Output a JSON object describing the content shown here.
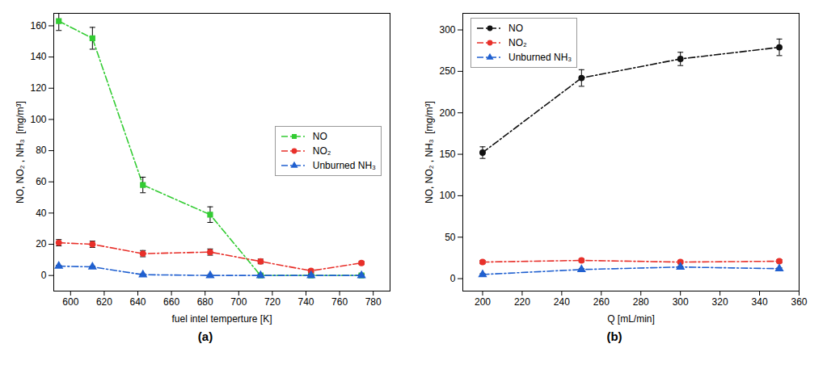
{
  "chart_data": [
    {
      "type": "line",
      "title": "(a)",
      "x_label": "fuel intel temperture [K]",
      "y_label": "NO, NO₂ , NH₃  [mg/m³]",
      "x": [
        593,
        613,
        643,
        683,
        713,
        743,
        773
      ],
      "series": [
        {
          "name": "NO",
          "color": "#33cc33",
          "marker": "square",
          "line_style": "dashdot",
          "values": [
            163,
            152,
            58,
            39,
            0,
            0,
            0
          ],
          "errors": [
            6,
            7,
            5,
            5,
            1,
            1,
            1
          ]
        },
        {
          "name": "NO₂",
          "color": "#e8302a",
          "marker": "circle",
          "line_style": "dashdot",
          "values": [
            21,
            20,
            14,
            15,
            9,
            3,
            8
          ],
          "errors": [
            2,
            2,
            2,
            2,
            1.5,
            1,
            1
          ]
        },
        {
          "name": "Unburned NH₃",
          "color": "#2060d0",
          "marker": "triangle",
          "line_style": "dashdot",
          "values": [
            6,
            5.5,
            0.5,
            0,
            0,
            0,
            0
          ],
          "errors": [
            0.5,
            0.5,
            0.5,
            0.5,
            0.5,
            0.5,
            0.5
          ]
        }
      ],
      "xlim": [
        590,
        790
      ],
      "xticks": [
        600,
        620,
        640,
        660,
        680,
        700,
        720,
        740,
        760,
        780
      ],
      "ylim": [
        -10,
        168
      ],
      "yticks": [
        0,
        20,
        40,
        60,
        80,
        100,
        120,
        140,
        160
      ],
      "legend": "center right",
      "grid": false
    },
    {
      "type": "line",
      "title": "(b)",
      "x_label": "Q [mL/min]",
      "y_label": "NO, NO₂ , NH₃  [mg/m³]",
      "x": [
        200,
        250,
        300,
        350
      ],
      "series": [
        {
          "name": "NO",
          "color": "#111111",
          "marker": "circle",
          "line_style": "dashdot",
          "values": [
            152,
            242,
            265,
            279
          ],
          "errors": [
            7,
            10,
            8,
            10
          ]
        },
        {
          "name": "NO₂",
          "color": "#e8302a",
          "marker": "circle",
          "line_style": "dashdot",
          "values": [
            20,
            22,
            20,
            21
          ],
          "errors": [
            2,
            2,
            2,
            2
          ]
        },
        {
          "name": "Unburned NH₃",
          "color": "#2060d0",
          "marker": "triangle",
          "line_style": "dashdot",
          "values": [
            5,
            11,
            14,
            12
          ],
          "errors": [
            1,
            1,
            1,
            1
          ]
        }
      ],
      "xlim": [
        190,
        360
      ],
      "xticks": [
        200,
        220,
        240,
        260,
        280,
        300,
        320,
        340,
        360
      ],
      "ylim": [
        -15,
        320
      ],
      "yticks": [
        0,
        50,
        100,
        150,
        200,
        250,
        300
      ],
      "legend": "upper left",
      "grid": false
    }
  ]
}
